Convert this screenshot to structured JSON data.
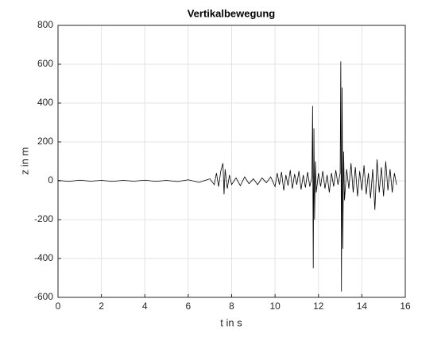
{
  "chart_data": {
    "type": "line",
    "title": "Vertikalbewegung",
    "xlabel": "t in s",
    "ylabel": "z in m",
    "x": [
      0,
      0.5,
      1,
      1.5,
      2,
      2.5,
      3,
      3.5,
      4,
      4.5,
      5,
      5.5,
      6,
      6.5,
      7.0,
      7.2,
      7.3,
      7.4,
      7.5,
      7.6,
      7.65,
      7.7,
      7.8,
      7.9,
      8.0,
      8.2,
      8.4,
      8.6,
      8.8,
      9.0,
      9.2,
      9.4,
      9.6,
      9.8,
      10.0,
      10.1,
      10.2,
      10.3,
      10.4,
      10.5,
      10.6,
      10.7,
      10.8,
      10.9,
      11.0,
      11.1,
      11.2,
      11.3,
      11.4,
      11.5,
      11.6,
      11.7,
      11.73,
      11.76,
      11.79,
      11.82,
      11.86,
      11.9,
      12.0,
      12.1,
      12.2,
      12.3,
      12.4,
      12.5,
      12.6,
      12.7,
      12.8,
      12.9,
      13.0,
      13.03,
      13.06,
      13.09,
      13.12,
      13.16,
      13.2,
      13.3,
      13.4,
      13.5,
      13.6,
      13.7,
      13.8,
      13.9,
      14.0,
      14.1,
      14.2,
      14.3,
      14.4,
      14.5,
      14.6,
      14.7,
      14.8,
      14.9,
      15.0,
      15.1,
      15.2,
      15.3,
      15.4,
      15.5,
      15.6
    ],
    "series": [
      {
        "color": "#000000",
        "values": [
          2,
          -3,
          3,
          -2,
          2,
          -3,
          2,
          -2,
          3,
          -3,
          2,
          -4,
          5,
          -8,
          10,
          -20,
          40,
          -30,
          50,
          90,
          -70,
          60,
          -40,
          30,
          -20,
          15,
          -25,
          20,
          -15,
          10,
          -20,
          15,
          -10,
          20,
          -30,
          40,
          -20,
          45,
          -50,
          30,
          -25,
          55,
          -40,
          35,
          -20,
          50,
          -45,
          30,
          -35,
          45,
          -30,
          20,
          385,
          -450,
          270,
          -200,
          100,
          -60,
          40,
          -30,
          50,
          -40,
          30,
          -60,
          40,
          -30,
          55,
          -20,
          40,
          615,
          -570,
          480,
          -350,
          150,
          -100,
          60,
          -40,
          90,
          -60,
          70,
          -80,
          50,
          -50,
          80,
          -70,
          40,
          -90,
          60,
          -150,
          110,
          -60,
          70,
          -80,
          100,
          -50,
          60,
          -60,
          40,
          -20
        ]
      }
    ],
    "xlim": [
      0,
      16
    ],
    "xticks": [
      0,
      2,
      4,
      6,
      8,
      10,
      12,
      14,
      16
    ],
    "ylim": [
      -600,
      800
    ],
    "yticks": [
      -600,
      -400,
      -200,
      0,
      200,
      400,
      600,
      800
    ],
    "grid": true
  }
}
